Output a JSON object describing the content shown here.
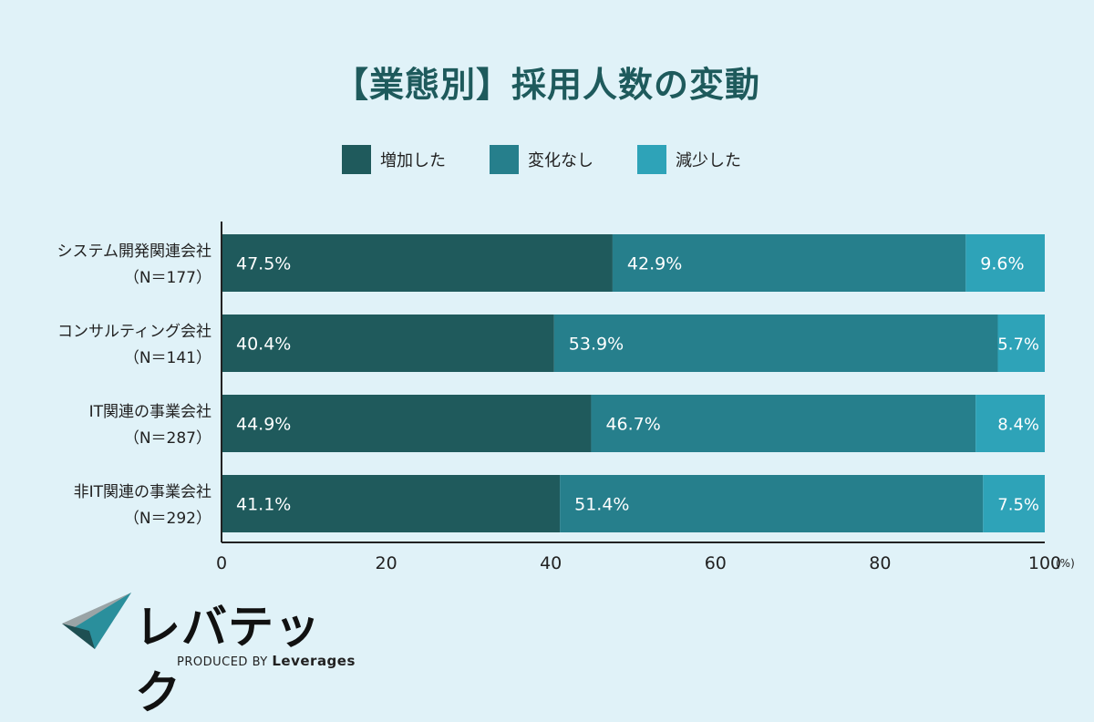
{
  "chart_data": {
    "type": "bar",
    "orientation": "horizontal",
    "stacked": true,
    "title": "【業態別】採用人数の変動",
    "categories": [
      {
        "name": "システム開発関連会社",
        "n": "（N＝177）"
      },
      {
        "name": "コンサルティング会社",
        "n": "（N＝141）"
      },
      {
        "name": "IT関連の事業会社",
        "n": "（N＝287）"
      },
      {
        "name": "非IT関連の事業会社",
        "n": "（N＝292）"
      }
    ],
    "series": [
      {
        "name": "増加した",
        "color": "#1f5a5c",
        "values": [
          47.5,
          40.4,
          44.9,
          41.1
        ]
      },
      {
        "name": "変化なし",
        "color": "#267f8c",
        "values": [
          42.9,
          53.9,
          46.7,
          51.4
        ]
      },
      {
        "name": "減少した",
        "color": "#2ea3b8",
        "values": [
          9.6,
          5.7,
          8.4,
          7.5
        ]
      }
    ],
    "x_ticks": [
      "0",
      "20",
      "40",
      "60",
      "80",
      "100"
    ],
    "x_unit": "(%)",
    "xlim": [
      0,
      100
    ],
    "legend_position": "top-center",
    "grid": false
  },
  "logo": {
    "name": "レバテック",
    "produced_by": "PRODUCED BY",
    "brand": "Leverages"
  }
}
